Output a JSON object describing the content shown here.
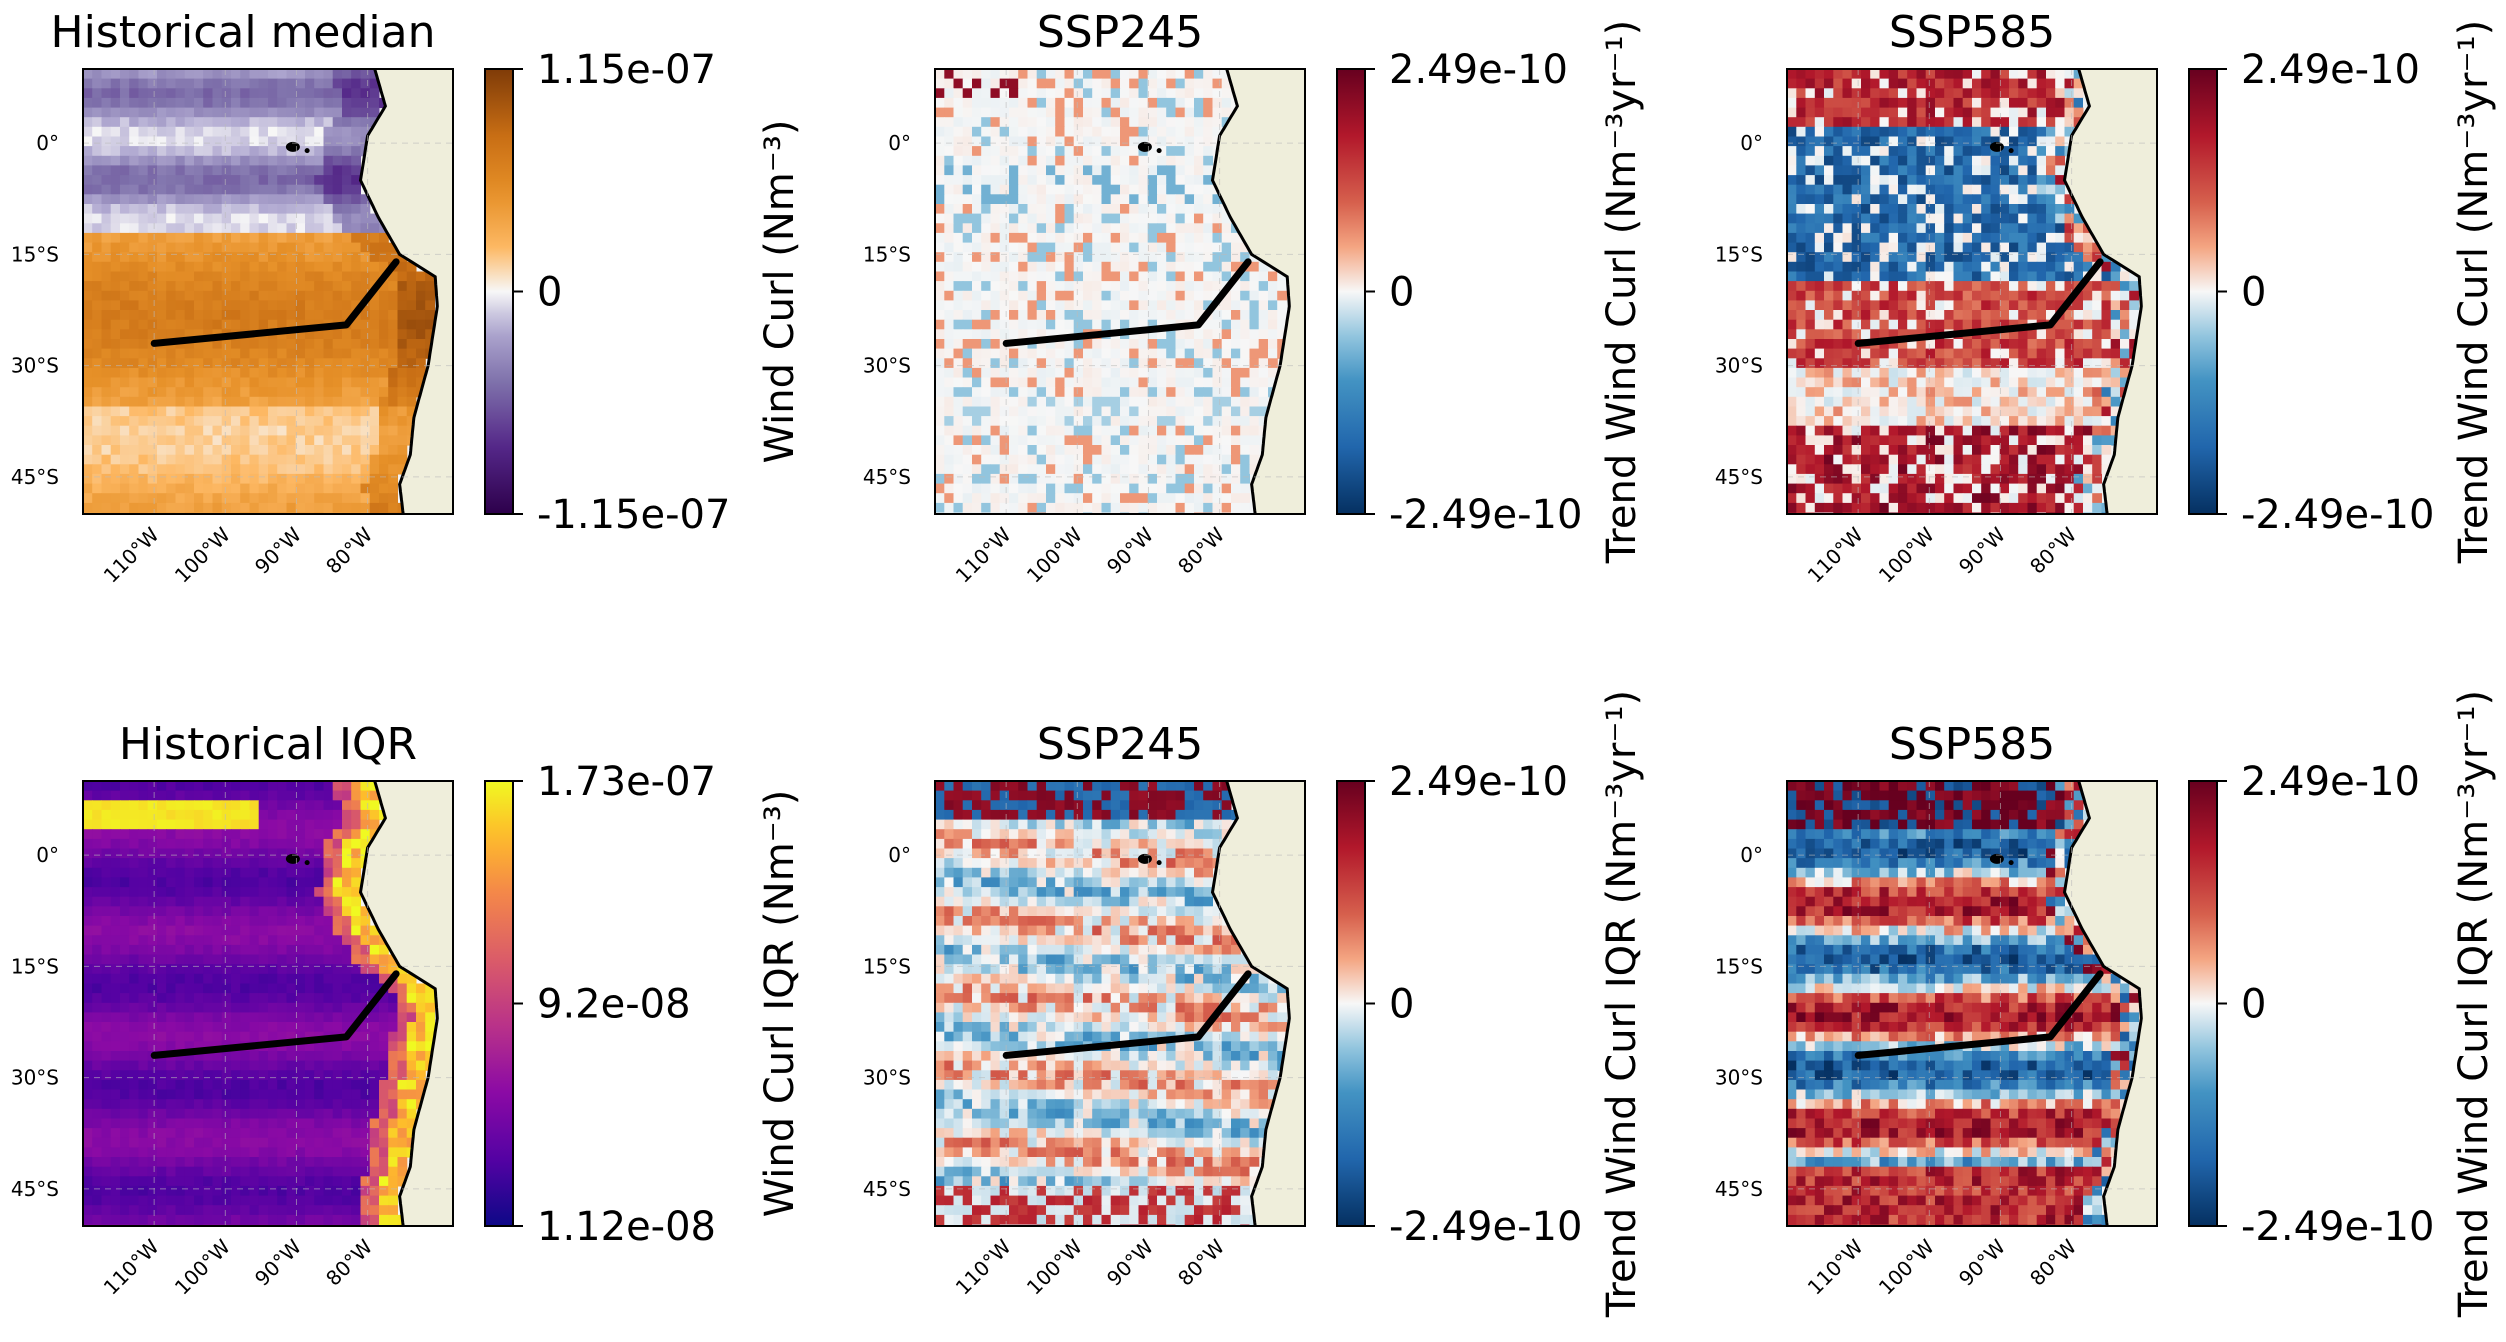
{
  "figure": {
    "description_free": true
  },
  "colors": {
    "land": "#efeedb",
    "coast": "#000000",
    "section_line": "#000000",
    "grid": "#bbbbbb",
    "ocean_no_trend": "#f4f4f4"
  },
  "chart_data": [
    {
      "type": "heatmap",
      "panel": "row1-col1",
      "title": "Historical median",
      "colormap": "PuOr",
      "colorbar": {
        "max_label": "1.15e-07",
        "mid_label": "0",
        "min_label": "-1.15e-07",
        "range": [
          -1.15e-07,
          1.15e-07
        ],
        "label": "Wind Curl (Nm⁻³)"
      },
      "lat_ticks": [
        "0°",
        "15°S",
        "30°S",
        "45°S"
      ],
      "lon_ticks": [
        "110°W",
        "100°W",
        "90°W",
        "80°W"
      ],
      "lon_range": [
        -120,
        -68
      ],
      "lat_range": [
        -50,
        10
      ],
      "section_line": [
        [
          -110,
          -27
        ],
        [
          -83,
          -24.5
        ],
        [
          -76,
          -16
        ]
      ]
    },
    {
      "type": "heatmap",
      "panel": "row1-col2",
      "title": "SSP245",
      "colormap": "RdBu_r",
      "colorbar": {
        "max_label": "2.49e-10",
        "mid_label": "0",
        "min_label": "-2.49e-10",
        "range": [
          -2.49e-10,
          2.49e-10
        ],
        "label": "Trend Wind Curl (Nm⁻³yr⁻¹)"
      },
      "lat_ticks": [
        "0°",
        "15°S",
        "30°S",
        "45°S"
      ],
      "lon_ticks": [
        "110°W",
        "100°W",
        "90°W",
        "80°W"
      ],
      "lon_range": [
        -120,
        -68
      ],
      "lat_range": [
        -50,
        10
      ],
      "section_line": [
        [
          -110,
          -27
        ],
        [
          -83,
          -24.5
        ],
        [
          -76,
          -16
        ]
      ]
    },
    {
      "type": "heatmap",
      "panel": "row1-col3",
      "title": "SSP585",
      "colormap": "RdBu_r",
      "colorbar": {
        "max_label": "2.49e-10",
        "mid_label": "0",
        "min_label": "-2.49e-10",
        "range": [
          -2.49e-10,
          2.49e-10
        ],
        "label": "Trend Wind Curl (Nm⁻³yr⁻¹)"
      },
      "lat_ticks": [
        "0°",
        "15°S",
        "30°S",
        "45°S"
      ],
      "lon_ticks": [
        "110°W",
        "100°W",
        "90°W",
        "80°W"
      ],
      "lon_range": [
        -120,
        -68
      ],
      "lat_range": [
        -50,
        10
      ],
      "section_line": [
        [
          -110,
          -27
        ],
        [
          -83,
          -24.5
        ],
        [
          -76,
          -16
        ]
      ]
    },
    {
      "type": "heatmap",
      "panel": "row2-col1",
      "title": "Historical IQR",
      "colormap": "plasma",
      "colorbar": {
        "max_label": "1.73e-07",
        "mid_label": "9.2e-08",
        "min_label": "1.12e-08",
        "range": [
          1.12e-08,
          1.73e-07
        ],
        "label": "Wind Curl IQR (Nm⁻³)"
      },
      "lat_ticks": [
        "0°",
        "15°S",
        "30°S",
        "45°S"
      ],
      "lon_ticks": [
        "110°W",
        "100°W",
        "90°W",
        "80°W"
      ],
      "lon_range": [
        -120,
        -68
      ],
      "lat_range": [
        -50,
        10
      ],
      "section_line": [
        [
          -110,
          -27
        ],
        [
          -83,
          -24.5
        ],
        [
          -76,
          -16
        ]
      ]
    },
    {
      "type": "heatmap",
      "panel": "row2-col2",
      "title": "SSP245",
      "colormap": "RdBu_r",
      "colorbar": {
        "max_label": "2.49e-10",
        "mid_label": "0",
        "min_label": "-2.49e-10",
        "range": [
          -2.49e-10,
          2.49e-10
        ],
        "label": "Trend Wind Curl IQR (Nm⁻³yr⁻¹)"
      },
      "lat_ticks": [
        "0°",
        "15°S",
        "30°S",
        "45°S"
      ],
      "lon_ticks": [
        "110°W",
        "100°W",
        "90°W",
        "80°W"
      ],
      "lon_range": [
        -120,
        -68
      ],
      "lat_range": [
        -50,
        10
      ],
      "section_line": [
        [
          -110,
          -27
        ],
        [
          -83,
          -24.5
        ],
        [
          -76,
          -16
        ]
      ]
    },
    {
      "type": "heatmap",
      "panel": "row2-col3",
      "title": "SSP585",
      "colormap": "RdBu_r",
      "colorbar": {
        "max_label": "2.49e-10",
        "mid_label": "0",
        "min_label": "-2.49e-10",
        "range": [
          -2.49e-10,
          2.49e-10
        ],
        "label": "Trend Wind Curl IQR (Nm⁻³yr⁻¹)"
      },
      "lat_ticks": [
        "0°",
        "15°S",
        "30°S",
        "45°S"
      ],
      "lon_ticks": [
        "110°W",
        "100°W",
        "90°W",
        "80°W"
      ],
      "lon_range": [
        -120,
        -68
      ],
      "lat_range": [
        -50,
        10
      ],
      "section_line": [
        [
          -110,
          -27
        ],
        [
          -83,
          -24.5
        ],
        [
          -76,
          -16
        ]
      ]
    }
  ]
}
